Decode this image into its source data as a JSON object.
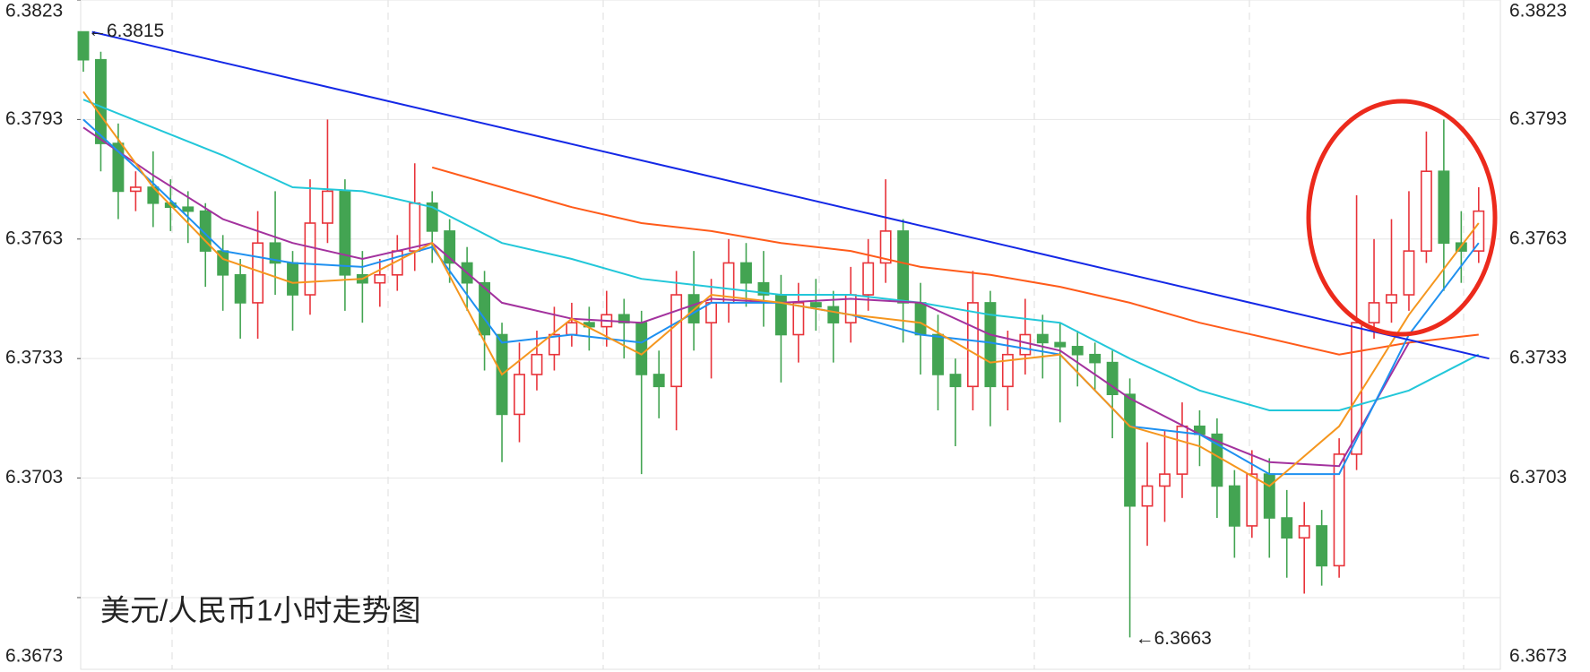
{
  "chart_data": {
    "type": "candlestick",
    "title": "美元/人民币1小时走势图",
    "title_color": "#ee3322",
    "up_color": "#e8333a",
    "down_color": "#43a452",
    "ylim": [
      6.3655,
      6.3823
    ],
    "yticks": [
      6.3673,
      6.3703,
      6.3733,
      6.3763,
      6.3793,
      6.3823
    ],
    "grid": true,
    "annotations": {
      "max": "←6.3815",
      "min": "←6.3663"
    },
    "open": [
      6.3815,
      6.3808,
      6.3787,
      6.3775,
      6.3776,
      6.3772,
      6.3771,
      6.377,
      6.376,
      6.3754,
      6.3747,
      6.3762,
      6.3757,
      6.3749,
      6.3767,
      6.3775,
      6.3754,
      6.3752,
      6.3754,
      6.376,
      6.3772,
      6.3765,
      6.3757,
      6.3752,
      6.3739,
      6.3719,
      6.3729,
      6.3734,
      6.3739,
      6.3742,
      6.3741,
      6.3744,
      6.3742,
      6.3729,
      6.3726,
      6.3749,
      6.3742,
      6.3747,
      6.3757,
      6.3752,
      6.3749,
      6.3739,
      6.3747,
      6.3746,
      6.3742,
      6.3749,
      6.3757,
      6.3765,
      6.3747,
      6.3739,
      6.3729,
      6.3726,
      6.3747,
      6.3726,
      6.3734,
      6.3739,
      6.3737,
      6.3736,
      6.3734,
      6.3732,
      6.3724,
      6.3696,
      6.3701,
      6.3704,
      6.3716,
      6.3714,
      6.3701,
      6.3691,
      6.3704,
      6.3693,
      6.3688,
      6.3691,
      6.3681,
      6.3709,
      6.3742,
      6.3747,
      6.3749,
      6.376,
      6.378,
      6.3762,
      6.376
    ],
    "high": [
      6.3815,
      6.381,
      6.3792,
      6.378,
      6.3785,
      6.3778,
      6.3775,
      6.3772,
      6.3764,
      6.3758,
      6.377,
      6.3775,
      6.376,
      6.3778,
      6.3793,
      6.3778,
      6.376,
      6.3758,
      6.3764,
      6.3782,
      6.3775,
      6.3768,
      6.3761,
      6.3755,
      6.3742,
      6.3737,
      6.374,
      6.3746,
      6.3747,
      6.3746,
      6.375,
      6.3748,
      6.3745,
      6.3735,
      6.3755,
      6.376,
      6.3753,
      6.3763,
      6.3762,
      6.376,
      6.3754,
      6.3752,
      6.3753,
      6.375,
      6.3756,
      6.3763,
      6.3778,
      6.3768,
      6.3752,
      6.3744,
      6.3733,
      6.3755,
      6.375,
      6.374,
      6.3748,
      6.3744,
      6.3742,
      6.374,
      6.3737,
      6.3735,
      6.3728,
      6.3712,
      6.3715,
      6.3722,
      6.372,
      6.3718,
      6.3705,
      6.371,
      6.3708,
      6.37,
      6.3697,
      6.3695,
      6.3713,
      6.3774,
      6.3763,
      6.3768,
      6.3775,
      6.379,
      6.3793,
      6.377,
      6.3776
    ],
    "low": [
      6.3805,
      6.378,
      6.3768,
      6.377,
      6.3766,
      6.3765,
      6.3762,
      6.3751,
      6.3745,
      6.3738,
      6.3738,
      6.3749,
      6.374,
      6.3744,
      6.3762,
      6.3745,
      6.3742,
      6.3746,
      6.375,
      6.3755,
      6.3757,
      6.3752,
      6.3745,
      6.373,
      6.3707,
      6.3712,
      6.3725,
      6.373,
      6.3736,
      6.3735,
      6.3736,
      6.3733,
      6.3704,
      6.3718,
      6.3715,
      6.3735,
      6.3728,
      6.3742,
      6.3746,
      6.3741,
      6.3727,
      6.3732,
      6.374,
      6.3732,
      6.3737,
      6.3745,
      6.3752,
      6.3737,
      6.3729,
      6.372,
      6.3711,
      6.372,
      6.3716,
      6.372,
      6.3729,
      6.3728,
      6.3717,
      6.3726,
      6.3725,
      6.3713,
      6.3663,
      6.3686,
      6.3692,
      6.3698,
      6.3706,
      6.3693,
      6.3683,
      6.3688,
      6.3683,
      6.3678,
      6.3674,
      6.3676,
      6.3678,
      6.3705,
      6.3738,
      6.3742,
      6.3745,
      6.3757,
      6.375,
      6.3752,
      6.3757
    ],
    "close": [
      6.3808,
      6.3787,
      6.3775,
      6.3776,
      6.3772,
      6.3771,
      6.377,
      6.376,
      6.3754,
      6.3747,
      6.3762,
      6.3757,
      6.3749,
      6.3767,
      6.3775,
      6.3754,
      6.3752,
      6.3754,
      6.376,
      6.3772,
      6.3765,
      6.3757,
      6.3752,
      6.3739,
      6.3719,
      6.3729,
      6.3734,
      6.3739,
      6.3742,
      6.3741,
      6.3744,
      6.3742,
      6.3729,
      6.3726,
      6.3749,
      6.3742,
      6.3747,
      6.3757,
      6.3752,
      6.3749,
      6.3739,
      6.3747,
      6.3746,
      6.3742,
      6.3749,
      6.3757,
      6.3765,
      6.3747,
      6.3739,
      6.3729,
      6.3726,
      6.3747,
      6.3726,
      6.3734,
      6.3739,
      6.3737,
      6.3736,
      6.3734,
      6.3732,
      6.3724,
      6.3696,
      6.3701,
      6.3704,
      6.3716,
      6.3714,
      6.3701,
      6.3691,
      6.3704,
      6.3693,
      6.3688,
      6.3691,
      6.3681,
      6.3709,
      6.3742,
      6.3747,
      6.3749,
      6.376,
      6.378,
      6.3762,
      6.376,
      6.377
    ],
    "series": [
      {
        "color": "#22c7d9",
        "x": [
          0,
          4,
          8,
          12,
          16,
          20,
          24,
          28,
          32,
          36,
          40,
          44,
          48,
          52,
          56,
          60,
          64,
          68,
          72,
          76,
          80
        ],
        "values": [
          6.3798,
          6.3791,
          6.3784,
          6.3776,
          6.3775,
          6.3771,
          6.3762,
          6.3758,
          6.3753,
          6.3751,
          6.3749,
          6.3749,
          6.3747,
          6.3744,
          6.3742,
          6.3733,
          6.3725,
          6.372,
          6.372,
          6.3725,
          6.3734
        ]
      },
      {
        "color": "#ff5b1a",
        "x": [
          0,
          4,
          8,
          12,
          16,
          20,
          24,
          28,
          32,
          36,
          40,
          44,
          48,
          52,
          56,
          60,
          64,
          68,
          72,
          76,
          80
        ],
        "values": [
          null,
          null,
          null,
          null,
          null,
          6.3781,
          6.3776,
          6.3771,
          6.3767,
          6.3765,
          6.3762,
          6.376,
          6.3756,
          6.3754,
          6.3751,
          6.3747,
          6.3742,
          6.3738,
          6.3734,
          6.3737,
          6.3739
        ]
      },
      {
        "color": "#a3329e",
        "x": [
          0,
          4,
          8,
          12,
          16,
          20,
          24,
          28,
          32,
          36,
          40,
          44,
          48,
          52,
          56,
          60,
          64,
          68,
          72,
          76,
          80
        ],
        "values": [
          6.3791,
          6.3779,
          6.3768,
          6.3762,
          6.3758,
          6.3762,
          6.3747,
          6.3743,
          6.3742,
          6.3748,
          6.3747,
          6.3748,
          6.3747,
          6.3739,
          6.3735,
          6.3723,
          6.3714,
          6.3707,
          6.3706,
          6.3737,
          null
        ]
      },
      {
        "color": "#1e90f0",
        "x": [
          0,
          4,
          8,
          12,
          16,
          20,
          24,
          28,
          32,
          36,
          40,
          44,
          48,
          52,
          56,
          60,
          64,
          68,
          72,
          76,
          80
        ],
        "values": [
          6.3793,
          6.3777,
          6.376,
          6.3757,
          6.3756,
          6.3761,
          6.3737,
          6.3739,
          6.3737,
          6.3747,
          6.3747,
          6.3744,
          6.3739,
          6.3737,
          6.3734,
          6.3716,
          6.3714,
          6.3704,
          6.3704,
          6.3739,
          6.3762
        ]
      },
      {
        "color": "#f5961e",
        "x": [
          0,
          4,
          8,
          12,
          16,
          20,
          24,
          28,
          32,
          36,
          40,
          44,
          48,
          52,
          56,
          60,
          64,
          68,
          72,
          76,
          80
        ],
        "values": [
          6.38,
          6.3776,
          6.3758,
          6.3752,
          6.3753,
          6.3762,
          6.3729,
          6.3743,
          6.3734,
          6.3749,
          6.3747,
          6.3744,
          6.3742,
          6.3732,
          6.3734,
          6.3716,
          6.3711,
          6.3701,
          6.3716,
          6.3744,
          6.3767
        ]
      },
      {
        "color": "#1428e6",
        "x": [
          0.5,
          80.6
        ],
        "values": [
          6.3815,
          6.3733
        ]
      }
    ]
  }
}
